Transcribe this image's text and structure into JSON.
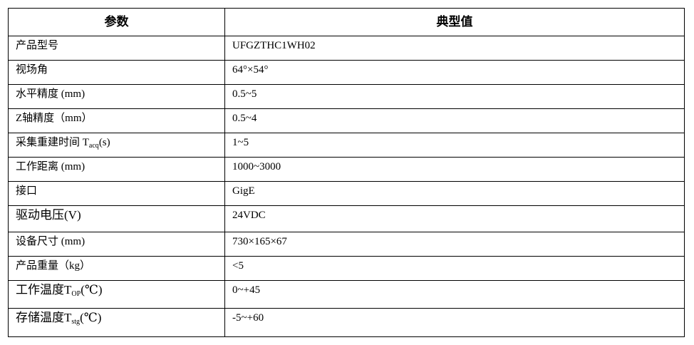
{
  "table": {
    "headers": [
      "参数",
      "典型值"
    ],
    "rows": [
      {
        "param": "产品型号",
        "value": "UFGZTHC1WH02"
      },
      {
        "param": "视场角",
        "value": "64°×54°"
      },
      {
        "param": "水平精度 (mm)",
        "value": "0.5~5"
      },
      {
        "param": "Z轴精度（mm）",
        "value": "0.5~4"
      },
      {
        "param": "采集重建时间 T",
        "param_sub": "acq",
        "param_suffix": "(s)",
        "value": "1~5"
      },
      {
        "param": "工作距离 (mm)",
        "value": "1000~3000"
      },
      {
        "param": "接口",
        "value": "GigE"
      },
      {
        "param": "驱动电压(V)",
        "value": "24VDC"
      },
      {
        "param": "设备尺寸 (mm)",
        "value": "730×165×67"
      },
      {
        "param": "产品重量（kg）",
        "value": "<5"
      },
      {
        "param": "工作温度T",
        "param_sub": "OP",
        "param_suffix": "(℃)",
        "value": "0~+45"
      },
      {
        "param": "存储温度T",
        "param_sub": "stg",
        "param_suffix": "(℃)",
        "value": "-5~+60"
      }
    ]
  }
}
